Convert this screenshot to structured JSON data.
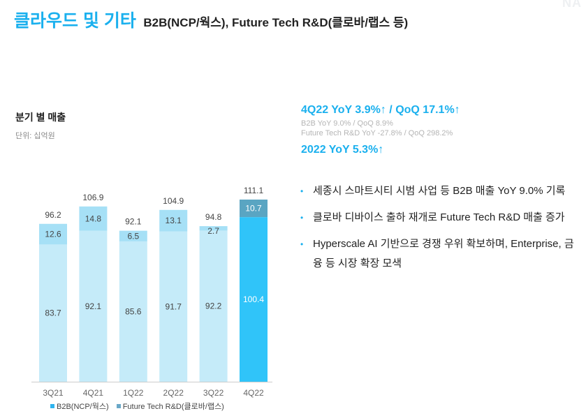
{
  "header": {
    "title": "클라우드 및 기타",
    "subtitle": "B2B(NCP/웍스), Future Tech R&D(클로바/랩스 등)",
    "logo_text": "NA"
  },
  "chart_section": {
    "heading": "분기 별 매출",
    "unit": "단위: 십억원"
  },
  "chart_data": {
    "type": "bar",
    "stacked": true,
    "categories": [
      "3Q21",
      "4Q21",
      "1Q22",
      "2Q22",
      "3Q22",
      "4Q22"
    ],
    "series": [
      {
        "name": "B2B(NCP/웍스)",
        "values": [
          83.7,
          92.1,
          85.6,
          91.7,
          92.2,
          100.4
        ]
      },
      {
        "name": "Future Tech R&D(클로바/랩스)",
        "values": [
          12.6,
          14.8,
          6.5,
          13.1,
          2.7,
          10.7
        ]
      }
    ],
    "totals": [
      "96.2",
      "106.9",
      "92.1",
      "104.9",
      "94.8",
      "111.1"
    ],
    "series_labels": [
      [
        "83.7",
        "92.1",
        "85.6",
        "91.7",
        "92.2",
        "100.4"
      ],
      [
        "12.6",
        "14.8",
        "6.5",
        "13.1",
        "2.7",
        "10.7"
      ]
    ],
    "highlight_index": 5,
    "ylim": [
      0,
      111.1
    ],
    "legend": [
      "B2B(NCP/웍스)",
      "Future Tech R&D(클로바/랩스)"
    ],
    "legend_position": "bottom-left",
    "colors": {
      "b2b": "#c5ebf9",
      "ftrd": "#a6e0f6",
      "b2b_highlight": "#30c4f9",
      "ftrd_highlight": "#5aa5c2",
      "legend_b2b": "#2fb4ef",
      "legend_ftrd": "#6aa8c8",
      "label_dark": "#444444",
      "label_light": "#ffffff",
      "axis": "#cccccc"
    }
  },
  "kpi": {
    "main": "4Q22 YoY 3.9%↑ / QoQ 17.1%↑",
    "sub1": "B2B YoY 9.0% / QoQ 8.9%",
    "sub2": "Future Tech R&D YoY -27.8% / QoQ 298.2%",
    "year": "2022 YoY 5.3%↑"
  },
  "bullets": [
    "세종시 스마트시티 시범 사업 등 B2B 매출 YoY 9.0% 기록",
    "클로바 디바이스 출하 재개로 Future Tech R&D 매출 증가",
    "Hyperscale AI 기반으로 경쟁 우위 확보하며, Enterprise, 금융 등 시장 확장 모색"
  ],
  "bullet_marker": "•"
}
